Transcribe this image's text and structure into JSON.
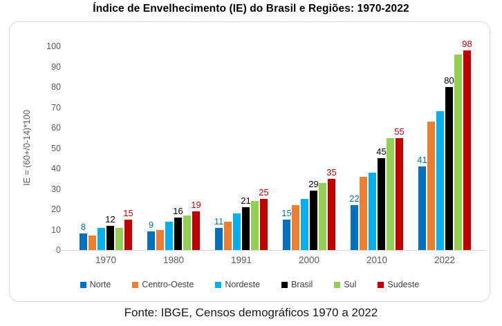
{
  "chart": {
    "title": "Índice de Envelhecimento (IE) do Brasil e Regiões: 1970-2022",
    "source": "Fonte: IBGE, Censos demográficos 1970 a 2022"
  },
  "chart_data": {
    "type": "bar",
    "title": "Índice de Envelhecimento (IE) do Brasil e Regiões: 1970-2022",
    "xlabel": "",
    "ylabel": "IE = (60+/0-14)*100",
    "categories": [
      "1970",
      "1980",
      "1991",
      "2000",
      "2010",
      "2022"
    ],
    "series": [
      {
        "name": "Norte",
        "color": "#0070C0",
        "label_color": "#0070C0",
        "show_labels": true,
        "values": [
          8,
          9,
          11,
          15,
          22,
          41
        ]
      },
      {
        "name": "Centro-Oeste",
        "color": "#ED7D31",
        "label_color": "#ED7D31",
        "show_labels": false,
        "values": [
          7,
          10,
          14,
          22,
          36,
          63
        ]
      },
      {
        "name": "Nordeste",
        "color": "#00B0F0",
        "label_color": "#00B0F0",
        "show_labels": false,
        "values": [
          11,
          14,
          18,
          25,
          38,
          68
        ]
      },
      {
        "name": "Brasil",
        "color": "#000000",
        "label_color": "#000000",
        "show_labels": true,
        "values": [
          12,
          16,
          21,
          29,
          45,
          80
        ]
      },
      {
        "name": "Sul",
        "color": "#92D050",
        "label_color": "#92D050",
        "show_labels": false,
        "values": [
          11,
          17,
          24,
          33,
          55,
          96
        ]
      },
      {
        "name": "Sudeste",
        "color": "#C00000",
        "label_color": "#C00000",
        "show_labels": true,
        "values": [
          15,
          19,
          25,
          35,
          55,
          98
        ]
      }
    ],
    "ylim": [
      0,
      100
    ],
    "ytick_step": 10,
    "grid": false,
    "legend_position": "bottom",
    "axis_color": "#D9D9D9",
    "tick_label_color": "#595959"
  }
}
